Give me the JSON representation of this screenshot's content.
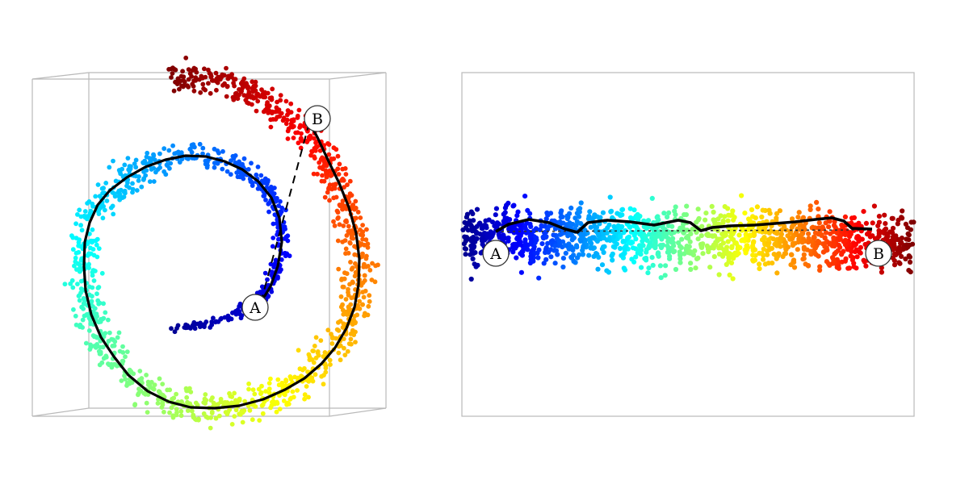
{
  "figure": {
    "left_panel": {
      "markers": {
        "start": "A",
        "end": "B"
      }
    },
    "right_panel": {
      "markers": {
        "start": "A",
        "end": "B"
      }
    }
  },
  "colors": {
    "colormap": [
      "#00008f",
      "#0000ff",
      "#007fff",
      "#00ffff",
      "#7fff7f",
      "#ffff00",
      "#ff7f00",
      "#ff0000",
      "#7f0000"
    ],
    "path": "#000000",
    "box": "#b9b9b9",
    "marker_fill": "#ffffff"
  }
}
